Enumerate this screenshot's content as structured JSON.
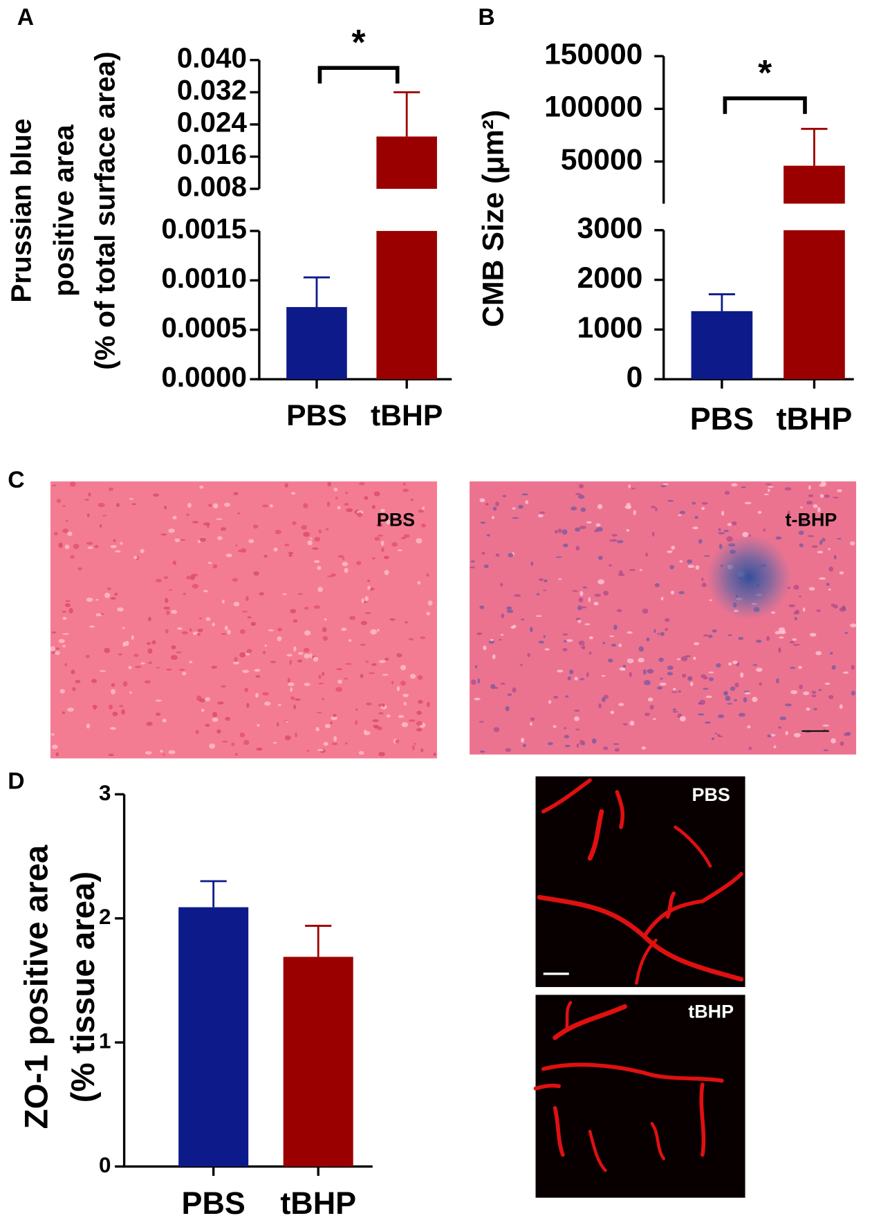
{
  "panels": [
    "A",
    "B",
    "C",
    "D"
  ],
  "chart_data": [
    {
      "type": "bar",
      "categories": [
        "PBS",
        "tBHP"
      ],
      "values": [
        0.00073,
        0.021
      ],
      "errors": [
        0.0003,
        0.011
      ],
      "colors": [
        "#0d1a8a",
        "#9b0000"
      ],
      "ylabel": [
        "Prussian blue",
        "positive area",
        "(% of total surface area)"
      ],
      "significance": "*",
      "y_segments": [
        {
          "ylim": [
            0,
            0.0015
          ],
          "yticks": [
            {
              "value": 0,
              "label": "0.0000"
            },
            0.0005,
            {
              "value": 0.001,
              "label": "0.0010"
            },
            0.0015
          ]
        },
        {
          "ylim": [
            0.008,
            0.04
          ],
          "yticks": [
            0.008,
            0.016,
            0.024,
            0.032,
            {
              "value": 0.04,
              "label": "0.040"
            }
          ]
        }
      ]
    },
    {
      "type": "bar",
      "categories": [
        "PBS",
        "tBHP"
      ],
      "values": [
        1370,
        46000
      ],
      "errors": [
        340,
        35000
      ],
      "colors": [
        "#0d1a8a",
        "#9b0000"
      ],
      "ylabel": [
        "CMB Size (μm²)"
      ],
      "significance": "*",
      "y_segments": [
        {
          "ylim": [
            0,
            3000
          ],
          "yticks": [
            0,
            1000,
            2000,
            3000
          ]
        },
        {
          "ylim": [
            10000,
            150000
          ],
          "yticks": [
            50000,
            100000,
            150000
          ]
        }
      ]
    },
    {
      "type": "bar",
      "categories": [
        "PBS",
        "tBHP"
      ],
      "values": [
        2.09,
        1.69
      ],
      "errors": [
        0.21,
        0.25
      ],
      "colors": [
        "#0d1a8a",
        "#9b0000"
      ],
      "ylabel": [
        "ZO-1 positive area",
        "(% tissue area)"
      ],
      "ylim": [
        0,
        3
      ],
      "yticks": [
        0,
        1,
        2,
        3
      ]
    }
  ],
  "images": [
    {
      "label": "PBS"
    },
    {
      "label": "t-BHP"
    },
    {
      "label": "PBS"
    },
    {
      "label": "tBHP"
    }
  ]
}
